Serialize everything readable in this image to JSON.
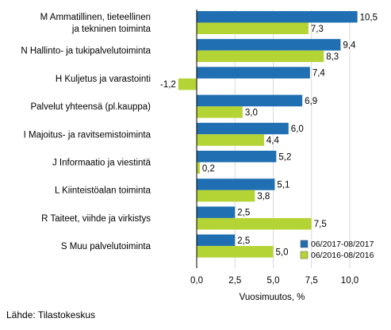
{
  "chart_data": {
    "type": "bar",
    "orientation": "horizontal",
    "categories": [
      [
        "M Ammatillinen, tieteellinen",
        "ja tekninen toiminta"
      ],
      [
        "N Hallinto- ja tukipalvelutoiminta"
      ],
      [
        "H Kuljetus ja varastointi"
      ],
      [
        "Palvelut yhteensä (pl.kauppa)"
      ],
      [
        "I Majoitus- ja ravitsemistoiminta"
      ],
      [
        "J Informaatio ja viestintä"
      ],
      [
        "L Kiinteistöalan toiminta"
      ],
      [
        "R Taiteet, viihde ja virkistys"
      ],
      [
        "S Muu palvelutoiminta"
      ]
    ],
    "series": [
      {
        "name": "06/2017-08/2017",
        "color": "#1f6fb2",
        "values": [
          10.5,
          9.4,
          7.4,
          6.9,
          6.0,
          5.2,
          5.1,
          2.5,
          2.5
        ],
        "labels": [
          "10,5",
          "9,4",
          "7,4",
          "6,9",
          "6,0",
          "5,2",
          "5,1",
          "2,5",
          "2,5"
        ]
      },
      {
        "name": "06/2016-08/2016",
        "color": "#b4d334",
        "values": [
          7.3,
          8.3,
          -1.2,
          3.0,
          4.4,
          0.2,
          3.8,
          7.5,
          5.0
        ],
        "labels": [
          "7,3",
          "8,3",
          "-1,2",
          "3,0",
          "4,4",
          "0,2",
          "3,8",
          "7,5",
          "5,0"
        ]
      }
    ],
    "xlim": [
      -2.5,
      12.0
    ],
    "xticks": [
      0,
      2.5,
      5.0,
      7.5,
      10.0
    ],
    "xtick_labels": [
      "0,0",
      "2,5",
      "5,0",
      "7,5",
      "10,0"
    ],
    "xlabel": "Vuosimuutos, %",
    "grid": true,
    "legend_position": "bottom-right"
  },
  "source": "Lähde: Tilastokeskus"
}
